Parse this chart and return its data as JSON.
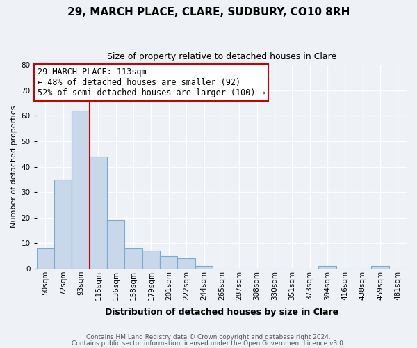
{
  "title1": "29, MARCH PLACE, CLARE, SUDBURY, CO10 8RH",
  "title2": "Size of property relative to detached houses in Clare",
  "xlabel": "Distribution of detached houses by size in Clare",
  "ylabel": "Number of detached properties",
  "bin_labels": [
    "50sqm",
    "72sqm",
    "93sqm",
    "115sqm",
    "136sqm",
    "158sqm",
    "179sqm",
    "201sqm",
    "222sqm",
    "244sqm",
    "265sqm",
    "287sqm",
    "308sqm",
    "330sqm",
    "351sqm",
    "373sqm",
    "394sqm",
    "416sqm",
    "438sqm",
    "459sqm",
    "481sqm"
  ],
  "bar_heights": [
    8,
    35,
    62,
    44,
    19,
    8,
    7,
    5,
    4,
    1,
    0,
    0,
    0,
    0,
    0,
    0,
    1,
    0,
    0,
    1,
    0
  ],
  "bar_color": "#c8d8ea",
  "bar_edge_color": "#7aabcf",
  "vline_x_index": 3,
  "vline_color": "#cc0000",
  "ylim": [
    0,
    80
  ],
  "yticks": [
    0,
    10,
    20,
    30,
    40,
    50,
    60,
    70,
    80
  ],
  "annotation_text": "29 MARCH PLACE: 113sqm\n← 48% of detached houses are smaller (92)\n52% of semi-detached houses are larger (100) →",
  "annotation_box_facecolor": "#ffffff",
  "annotation_box_edgecolor": "#cc0000",
  "footer1": "Contains HM Land Registry data © Crown copyright and database right 2024.",
  "footer2": "Contains public sector information licensed under the Open Government Licence v3.0.",
  "bg_color": "#eef2f7",
  "grid_color": "#ffffff",
  "title1_fontsize": 11,
  "title2_fontsize": 9,
  "ylabel_fontsize": 8,
  "xlabel_fontsize": 9,
  "tick_fontsize": 7.5,
  "annot_fontsize": 8.5,
  "footer_fontsize": 6.5
}
